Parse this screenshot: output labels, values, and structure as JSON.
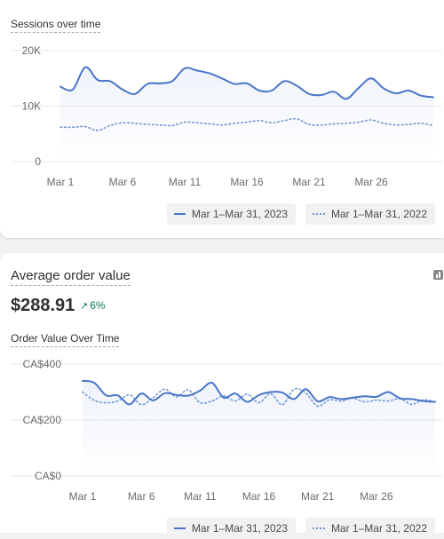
{
  "chart_data": [
    {
      "type": "line",
      "title": "Sessions over time",
      "categories": [
        "Mar 1",
        "Mar 2",
        "Mar 3",
        "Mar 4",
        "Mar 5",
        "Mar 6",
        "Mar 7",
        "Mar 8",
        "Mar 9",
        "Mar 10",
        "Mar 11",
        "Mar 12",
        "Mar 13",
        "Mar 14",
        "Mar 15",
        "Mar 16",
        "Mar 17",
        "Mar 18",
        "Mar 19",
        "Mar 20",
        "Mar 21",
        "Mar 22",
        "Mar 23",
        "Mar 24",
        "Mar 25",
        "Mar 26",
        "Mar 27",
        "Mar 28",
        "Mar 29",
        "Mar 30",
        "Mar 31"
      ],
      "x_tick_labels": [
        "Mar 1",
        "Mar 6",
        "Mar 11",
        "Mar 16",
        "Mar 21",
        "Mar 26"
      ],
      "y_tick_labels": [
        "20K",
        "10K",
        "0"
      ],
      "ylim": [
        0,
        20000
      ],
      "grid": true,
      "series": [
        {
          "name": "Mar 1–Mar 31, 2023",
          "style": "solid",
          "values": [
            13500,
            13000,
            17000,
            14700,
            14500,
            13000,
            12200,
            14000,
            14100,
            14500,
            16800,
            16400,
            15900,
            15000,
            14000,
            14100,
            12800,
            12800,
            14500,
            13700,
            12200,
            12000,
            12600,
            11300,
            13300,
            15000,
            13200,
            12300,
            12800,
            11900,
            11600
          ]
        },
        {
          "name": "Mar 1–Mar 31, 2022",
          "style": "dotted",
          "values": [
            6200,
            6200,
            6300,
            5600,
            6500,
            7000,
            6900,
            6700,
            6600,
            6500,
            7100,
            7000,
            6800,
            6600,
            6900,
            7100,
            7400,
            7000,
            7400,
            7700,
            6700,
            6600,
            6800,
            6900,
            7100,
            7500,
            6900,
            6600,
            6700,
            6900,
            6500
          ]
        }
      ],
      "legend": "bottom-right"
    },
    {
      "type": "line",
      "title": "Order Value Over Time",
      "categories": [
        "Mar 1",
        "Mar 2",
        "Mar 3",
        "Mar 4",
        "Mar 5",
        "Mar 6",
        "Mar 7",
        "Mar 8",
        "Mar 9",
        "Mar 10",
        "Mar 11",
        "Mar 12",
        "Mar 13",
        "Mar 14",
        "Mar 15",
        "Mar 16",
        "Mar 17",
        "Mar 18",
        "Mar 19",
        "Mar 20",
        "Mar 21",
        "Mar 22",
        "Mar 23",
        "Mar 24",
        "Mar 25",
        "Mar 26",
        "Mar 27",
        "Mar 28",
        "Mar 29",
        "Mar 30",
        "Mar 31"
      ],
      "x_tick_labels": [
        "Mar 1",
        "Mar 6",
        "Mar 11",
        "Mar 16",
        "Mar 21",
        "Mar 26"
      ],
      "y_tick_labels": [
        "CA$400",
        "CA$200",
        "CA$0"
      ],
      "ylim": [
        0,
        400
      ],
      "grid": true,
      "series": [
        {
          "name": "Mar 1–Mar 31, 2023",
          "style": "solid",
          "values": [
            340,
            333,
            288,
            288,
            256,
            295,
            270,
            296,
            290,
            287,
            305,
            333,
            280,
            295,
            265,
            289,
            300,
            298,
            275,
            310,
            267,
            282,
            275,
            280,
            285,
            283,
            300,
            278,
            275,
            268,
            265
          ]
        },
        {
          "name": "Mar 1–Mar 31, 2022",
          "style": "dotted",
          "values": [
            300,
            270,
            262,
            268,
            290,
            255,
            280,
            310,
            283,
            308,
            262,
            268,
            286,
            268,
            292,
            262,
            294,
            255,
            310,
            296,
            250,
            272,
            268,
            278,
            265,
            271,
            268,
            276,
            256,
            272,
            265
          ]
        }
      ],
      "legend": "bottom-right"
    }
  ],
  "metric": {
    "title": "Average order value",
    "value": "$288.91",
    "change": "6%",
    "change_arrow": "↗"
  },
  "colors": {
    "current": "#4a76c8",
    "previous": "#6f95d6",
    "positive": "#0c7a4e"
  }
}
